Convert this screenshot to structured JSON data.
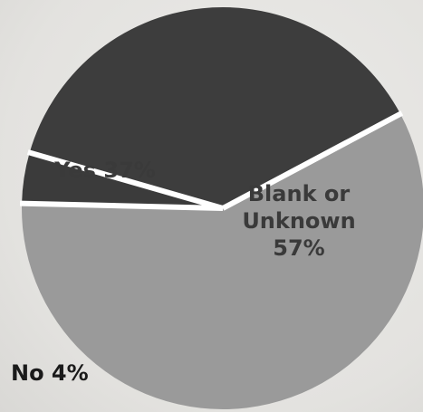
{
  "chart_data": {
    "type": "pie",
    "title": "",
    "legend": "none",
    "start_angle_deg": -28,
    "slices": [
      {
        "label": "Blank or Unknown 57%",
        "label_lines": [
          "Blank or",
          "Unknown",
          "57%"
        ],
        "value": 57,
        "color": "#9a9a9a"
      },
      {
        "label": "No 4%",
        "label_lines": [
          "No 4%"
        ],
        "value": 4,
        "color": "#3b3b3b"
      },
      {
        "label": "Yes 37%",
        "label_lines": [
          "Yes 37%"
        ],
        "value": 37,
        "color": "#3d3d3d"
      }
    ],
    "separator_color": "#ffffff"
  }
}
